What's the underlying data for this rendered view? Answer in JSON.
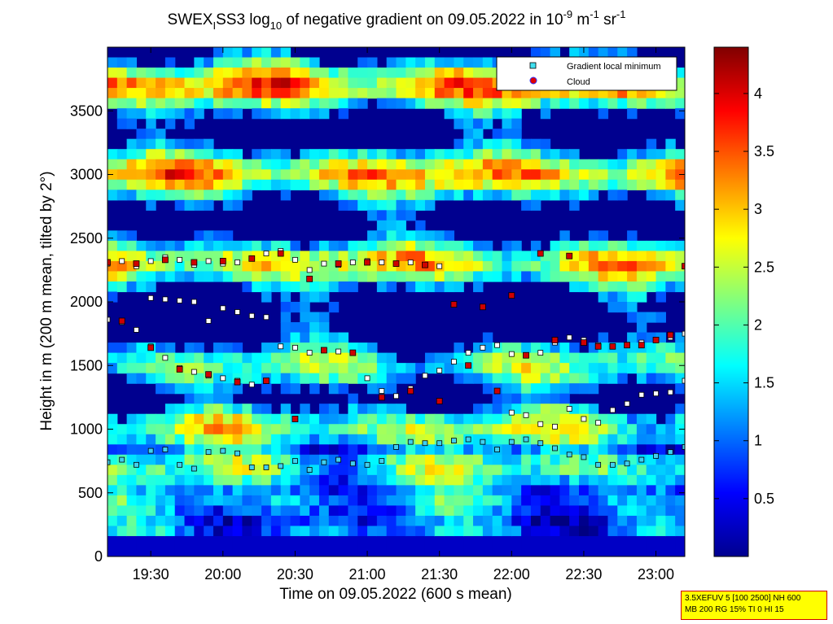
{
  "chart_data": {
    "type": "heatmap",
    "title": {
      "part1": "SWEX",
      "sub1": "I",
      "part2": "SS3 log",
      "sub2": "10",
      "part3": " of negative gradient on 09.05.2022 in 10",
      "sup1": "-9",
      "part4": " m",
      "sup2": "-1",
      "part5": " sr",
      "sup3": "-1"
    },
    "xlabel": "Time on 09.05.2022 (600 s mean)",
    "ylabel": "Height in m (200 m mean, tilted by 2°)",
    "x_ticks": [
      "19:30",
      "20:00",
      "20:30",
      "21:00",
      "21:30",
      "22:00",
      "22:30",
      "23:00"
    ],
    "x_tick_values_min": [
      1170,
      1200,
      1230,
      1260,
      1290,
      1320,
      1350,
      1380
    ],
    "xlim_min": [
      1152,
      1392
    ],
    "y_ticks": [
      0,
      500,
      1000,
      1500,
      2000,
      2500,
      3000,
      3500
    ],
    "ylim": [
      0,
      4000
    ],
    "colorbar": {
      "ticks": [
        "0.5",
        "1",
        "1.5",
        "2",
        "2.5",
        "3",
        "3.5",
        "4"
      ],
      "tick_values": [
        0.5,
        1,
        1.5,
        2,
        2.5,
        3,
        3.5,
        4
      ],
      "range": [
        0,
        4.4
      ],
      "colormap": "jet"
    },
    "legend": {
      "placement": "top-right",
      "entries": [
        {
          "label": "Gradient local minimum",
          "marker": "square",
          "color": "#40e0f0"
        },
        {
          "label": "Cloud",
          "marker": "circle",
          "color": "#e00000"
        }
      ]
    },
    "layers": [
      {
        "height_m": 200,
        "value": 1.0
      },
      {
        "height_m": 450,
        "value": 1.3
      },
      {
        "height_m": 700,
        "value": 2.0
      },
      {
        "height_m": 1000,
        "value": 2.3
      },
      {
        "height_m": 1500,
        "value": 2.0
      },
      {
        "height_m": 2300,
        "value": 2.7
      },
      {
        "height_m": 3000,
        "value": 3.0
      },
      {
        "height_m": 3700,
        "value": 3.2
      }
    ],
    "series": [
      {
        "kind": "gradient_min",
        "x": [
          1152,
          1158,
          1164,
          1170,
          1176,
          1182,
          1188,
          1194,
          1200,
          1206,
          1212,
          1218,
          1224,
          1230,
          1236,
          1242,
          1248,
          1254,
          1260,
          1266,
          1272,
          1278,
          1284,
          1290,
          1296,
          1302,
          1308,
          1314,
          1320,
          1326,
          1332,
          1338,
          1344,
          1350,
          1356,
          1362,
          1368,
          1374,
          1380,
          1386,
          1392
        ],
        "y": [
          740,
          760,
          720,
          830,
          840,
          720,
          690,
          820,
          830,
          810,
          700,
          700,
          710,
          750,
          680,
          740,
          760,
          730,
          720,
          750,
          860,
          900,
          890,
          890,
          910,
          920,
          900,
          840,
          900,
          920,
          890,
          850,
          800,
          780,
          720,
          720,
          730,
          760,
          790,
          820,
          860
        ]
      },
      {
        "kind": "gradient_min",
        "x": [
          1152,
          1158,
          1164,
          1170,
          1176,
          1182,
          1188,
          1194,
          1200,
          1206,
          1212,
          1218,
          1224,
          1230,
          1236,
          1242,
          1248,
          1254,
          1260,
          1266,
          1272,
          1278,
          1284,
          1290,
          1296,
          1302,
          1308,
          1314,
          1320,
          1326,
          1332,
          1338,
          1344,
          1350,
          1356,
          1362,
          1368,
          1374,
          1380,
          1386,
          1392
        ],
        "y": [
          1860,
          1840,
          1780,
          1650,
          1560,
          1480,
          1450,
          1420,
          1400,
          1380,
          1350,
          1380,
          1650,
          1640,
          1600,
          1620,
          1610,
          1600,
          1400,
          1300,
          1260,
          1320,
          1420,
          1460,
          1530,
          1600,
          1640,
          1660,
          1590,
          1580,
          1600,
          1680,
          1720,
          1700,
          1660,
          1650,
          1660,
          1680,
          1700,
          1720,
          1750
        ]
      },
      {
        "kind": "gradient_min",
        "x": [
          1152,
          1158,
          1164,
          1170,
          1176,
          1182,
          1188,
          1194,
          1200,
          1206,
          1212,
          1218,
          1224,
          1230,
          1236,
          1242,
          1248,
          1254,
          1260,
          1266,
          1272,
          1278,
          1284,
          1290
        ],
        "y": [
          2300,
          2320,
          2280,
          2320,
          2350,
          2330,
          2290,
          2320,
          2300,
          2310,
          2340,
          2380,
          2400,
          2330,
          2250,
          2300,
          2290,
          2310,
          2320,
          2310,
          2300,
          2310,
          2290,
          2280
        ]
      },
      {
        "kind": "gradient_min",
        "x": [
          1170,
          1176,
          1182,
          1188,
          1194,
          1200,
          1206,
          1212,
          1218
        ],
        "y": [
          2030,
          2020,
          2010,
          2000,
          1850,
          1950,
          1920,
          1890,
          1880
        ]
      },
      {
        "kind": "gradient_min",
        "x": [
          1320,
          1326,
          1332,
          1338,
          1344,
          1350,
          1356,
          1362,
          1368,
          1374,
          1380,
          1386,
          1392
        ],
        "y": [
          1130,
          1110,
          1040,
          1020,
          1160,
          1080,
          1050,
          1150,
          1200,
          1270,
          1280,
          1290,
          1380
        ]
      },
      {
        "kind": "cloud",
        "x": [
          1152,
          1164,
          1176,
          1188,
          1200,
          1212,
          1224,
          1236,
          1248,
          1260,
          1272,
          1284,
          1296,
          1308,
          1320,
          1332,
          1344,
          1356,
          1368,
          1380,
          1392
        ],
        "y": [
          2310,
          2300,
          2330,
          2310,
          2320,
          2340,
          2380,
          2180,
          2300,
          2310,
          2300,
          2290,
          1980,
          1960,
          2050,
          2380,
          2360,
          1650,
          1660,
          1700,
          2280
        ]
      },
      {
        "kind": "cloud",
        "x": [
          1158,
          1170,
          1182,
          1194,
          1206,
          1218,
          1230,
          1242,
          1254,
          1266,
          1278,
          1290,
          1302,
          1314,
          1326,
          1338,
          1350,
          1362,
          1374,
          1386
        ],
        "y": [
          1850,
          1640,
          1470,
          1430,
          1370,
          1380,
          1080,
          1620,
          1600,
          1250,
          1300,
          1220,
          1500,
          1300,
          1580,
          1700,
          1680,
          1650,
          1660,
          1740
        ]
      }
    ]
  },
  "infobox": {
    "line1": "3.5XEFUV 5 [100 2500] NH 600",
    "line2": "MB 200 RG 15% TI 0 HI 15"
  }
}
